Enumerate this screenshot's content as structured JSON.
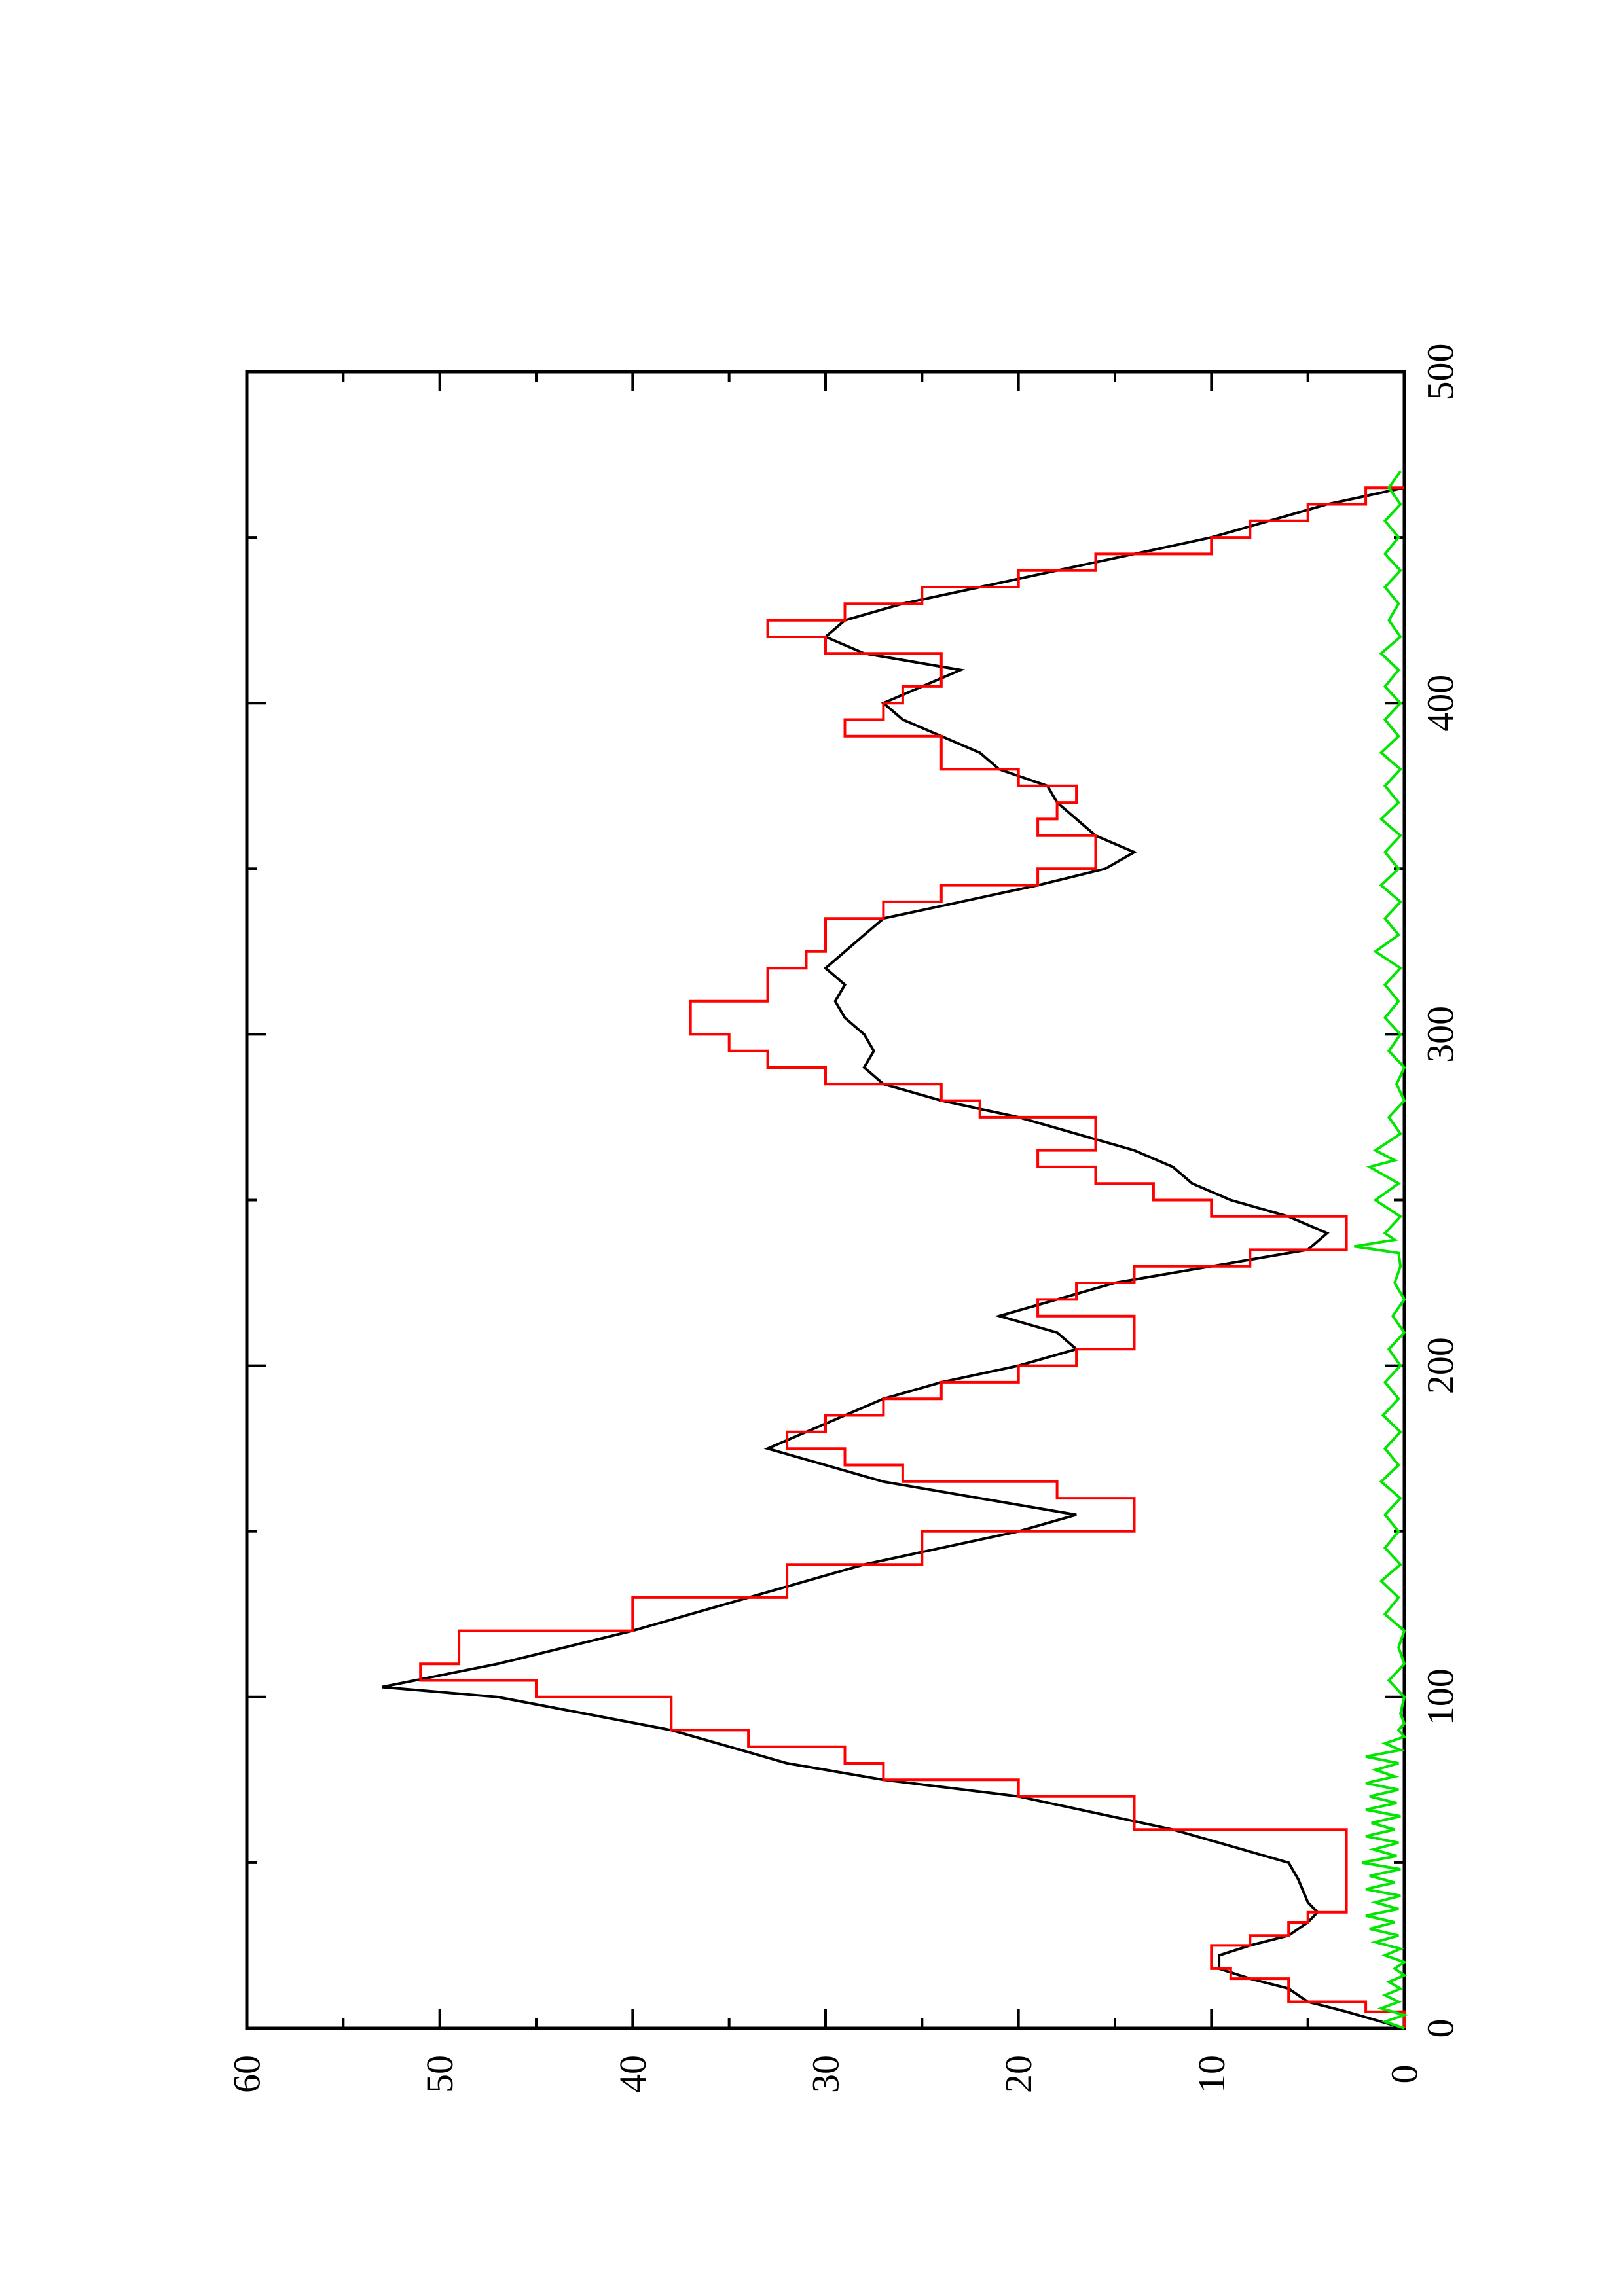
{
  "chart_data": {
    "type": "line",
    "title": "",
    "xlabel": "",
    "ylabel": "",
    "orientation": "rotated-90-ccw",
    "xlim": [
      0,
      500
    ],
    "ylim": [
      0,
      60
    ],
    "grid": false,
    "legend": "none",
    "x_ticks": [
      0,
      100,
      200,
      300,
      400,
      500
    ],
    "y_ticks": [
      0,
      10,
      20,
      30,
      40,
      50,
      60
    ],
    "x_tick_labels": [
      "0",
      "100",
      "200",
      "300",
      "400",
      "500"
    ],
    "y_tick_labels": [
      "0",
      "10",
      "20",
      "30",
      "40",
      "50",
      "60"
    ],
    "series": [
      {
        "color": "#000000",
        "style": "line",
        "points": [
          [
            0,
            0
          ],
          [
            5,
            3
          ],
          [
            8,
            5
          ],
          [
            12,
            6
          ],
          [
            15,
            8
          ],
          [
            18,
            9.6
          ],
          [
            22,
            9.6
          ],
          [
            25,
            8
          ],
          [
            28,
            6
          ],
          [
            32,
            5
          ],
          [
            35,
            4.5
          ],
          [
            38,
            5
          ],
          [
            45,
            5.5
          ],
          [
            50,
            6
          ],
          [
            60,
            12
          ],
          [
            70,
            20
          ],
          [
            75,
            27
          ],
          [
            80,
            32
          ],
          [
            85,
            35
          ],
          [
            90,
            38
          ],
          [
            100,
            47
          ],
          [
            103,
            53
          ],
          [
            110,
            47
          ],
          [
            120,
            40
          ],
          [
            130,
            34
          ],
          [
            140,
            28
          ],
          [
            150,
            20
          ],
          [
            155,
            17
          ],
          [
            160,
            22
          ],
          [
            165,
            27
          ],
          [
            170,
            30
          ],
          [
            175,
            33
          ],
          [
            180,
            31
          ],
          [
            185,
            29
          ],
          [
            190,
            27
          ],
          [
            195,
            24
          ],
          [
            200,
            20
          ],
          [
            205,
            17
          ],
          [
            210,
            18
          ],
          [
            215,
            21
          ],
          [
            220,
            18
          ],
          [
            225,
            15
          ],
          [
            230,
            10
          ],
          [
            235,
            5
          ],
          [
            240,
            4
          ],
          [
            245,
            6
          ],
          [
            250,
            9
          ],
          [
            255,
            11
          ],
          [
            260,
            12
          ],
          [
            265,
            14
          ],
          [
            270,
            17
          ],
          [
            275,
            20
          ],
          [
            280,
            24
          ],
          [
            285,
            27
          ],
          [
            290,
            28
          ],
          [
            295,
            27.5
          ],
          [
            300,
            28
          ],
          [
            305,
            29
          ],
          [
            310,
            29.5
          ],
          [
            315,
            29
          ],
          [
            320,
            30
          ],
          [
            325,
            29
          ],
          [
            330,
            28
          ],
          [
            335,
            27
          ],
          [
            340,
            23
          ],
          [
            345,
            19
          ],
          [
            350,
            15.5
          ],
          [
            355,
            14
          ],
          [
            360,
            16
          ],
          [
            365,
            17
          ],
          [
            370,
            18
          ],
          [
            375,
            18.5
          ],
          [
            380,
            21
          ],
          [
            385,
            22
          ],
          [
            390,
            24
          ],
          [
            395,
            26
          ],
          [
            400,
            27
          ],
          [
            405,
            25
          ],
          [
            410,
            23
          ],
          [
            415,
            28
          ],
          [
            420,
            30
          ],
          [
            425,
            29
          ],
          [
            430,
            26
          ],
          [
            435,
            22
          ],
          [
            440,
            18
          ],
          [
            445,
            14
          ],
          [
            450,
            10
          ],
          [
            455,
            7
          ],
          [
            460,
            4
          ],
          [
            465,
            0
          ]
        ]
      },
      {
        "color": "#ff0000",
        "style": "step",
        "points": [
          [
            0,
            0
          ],
          [
            5,
            2
          ],
          [
            8,
            6
          ],
          [
            12,
            6
          ],
          [
            15,
            9
          ],
          [
            18,
            10
          ],
          [
            22,
            10
          ],
          [
            25,
            8
          ],
          [
            28,
            6
          ],
          [
            32,
            5
          ],
          [
            35,
            3
          ],
          [
            45,
            3
          ],
          [
            50,
            3
          ],
          [
            60,
            14
          ],
          [
            70,
            20
          ],
          [
            75,
            27
          ],
          [
            80,
            29
          ],
          [
            85,
            34
          ],
          [
            90,
            38
          ],
          [
            100,
            45
          ],
          [
            105,
            51
          ],
          [
            110,
            49
          ],
          [
            120,
            40
          ],
          [
            130,
            32
          ],
          [
            140,
            25
          ],
          [
            150,
            14
          ],
          [
            155,
            14
          ],
          [
            160,
            18
          ],
          [
            165,
            26
          ],
          [
            170,
            29
          ],
          [
            175,
            32
          ],
          [
            180,
            30
          ],
          [
            185,
            27
          ],
          [
            190,
            24
          ],
          [
            195,
            20
          ],
          [
            200,
            17
          ],
          [
            205,
            14
          ],
          [
            210,
            14
          ],
          [
            215,
            19
          ],
          [
            220,
            17
          ],
          [
            225,
            14
          ],
          [
            230,
            8
          ],
          [
            235,
            3
          ],
          [
            240,
            3
          ],
          [
            245,
            10
          ],
          [
            250,
            13
          ],
          [
            255,
            16
          ],
          [
            260,
            19
          ],
          [
            265,
            16
          ],
          [
            270,
            16
          ],
          [
            275,
            22
          ],
          [
            280,
            24
          ],
          [
            285,
            30
          ],
          [
            290,
            33
          ],
          [
            295,
            35
          ],
          [
            300,
            37
          ],
          [
            305,
            37
          ],
          [
            310,
            33
          ],
          [
            315,
            33
          ],
          [
            320,
            31
          ],
          [
            325,
            30
          ],
          [
            330,
            30
          ],
          [
            335,
            27
          ],
          [
            340,
            24
          ],
          [
            345,
            19
          ],
          [
            350,
            16
          ],
          [
            355,
            16
          ],
          [
            360,
            19
          ],
          [
            365,
            18
          ],
          [
            370,
            17
          ],
          [
            375,
            20
          ],
          [
            380,
            24
          ],
          [
            385,
            24
          ],
          [
            390,
            29
          ],
          [
            395,
            27
          ],
          [
            400,
            26
          ],
          [
            405,
            24
          ],
          [
            410,
            24
          ],
          [
            415,
            30
          ],
          [
            420,
            33
          ],
          [
            425,
            29
          ],
          [
            430,
            25
          ],
          [
            435,
            20
          ],
          [
            440,
            16
          ],
          [
            445,
            10
          ],
          [
            450,
            8
          ],
          [
            455,
            5
          ],
          [
            460,
            2
          ],
          [
            465,
            0
          ]
        ]
      },
      {
        "color": "#00e600",
        "style": "line",
        "points": [
          [
            0,
            0
          ],
          [
            2,
            1
          ],
          [
            4,
            0
          ],
          [
            6,
            1.2
          ],
          [
            8,
            0.3
          ],
          [
            10,
            1
          ],
          [
            12,
            0.2
          ],
          [
            14,
            0.8
          ],
          [
            16,
            0
          ],
          [
            18,
            0.5
          ],
          [
            20,
            0
          ],
          [
            22,
            1
          ],
          [
            24,
            0.2
          ],
          [
            26,
            1.5
          ],
          [
            28,
            0.3
          ],
          [
            30,
            1.8
          ],
          [
            32,
            0.5
          ],
          [
            34,
            2
          ],
          [
            36,
            0.3
          ],
          [
            38,
            1.5
          ],
          [
            40,
            0.2
          ],
          [
            42,
            2
          ],
          [
            44,
            0.5
          ],
          [
            46,
            1.8
          ],
          [
            48,
            0.2
          ],
          [
            50,
            2.2
          ],
          [
            52,
            0.4
          ],
          [
            54,
            1.6
          ],
          [
            56,
            0.3
          ],
          [
            58,
            2
          ],
          [
            60,
            0.5
          ],
          [
            62,
            1.7
          ],
          [
            64,
            0.2
          ],
          [
            66,
            2
          ],
          [
            68,
            0.4
          ],
          [
            70,
            1.8
          ],
          [
            72,
            0.3
          ],
          [
            74,
            2
          ],
          [
            76,
            0.5
          ],
          [
            78,
            1.5
          ],
          [
            80,
            0.3
          ],
          [
            82,
            2
          ],
          [
            84,
            0.2
          ],
          [
            86,
            1
          ],
          [
            88,
            0
          ],
          [
            90,
            0.3
          ],
          [
            92,
            0
          ],
          [
            95,
            0.2
          ],
          [
            100,
            0
          ],
          [
            105,
            0.8
          ],
          [
            110,
            0
          ],
          [
            115,
            0.3
          ],
          [
            120,
            0
          ],
          [
            125,
            1
          ],
          [
            130,
            0.3
          ],
          [
            135,
            1.2
          ],
          [
            140,
            0.2
          ],
          [
            145,
            1
          ],
          [
            150,
            0.3
          ],
          [
            155,
            1
          ],
          [
            160,
            0.2
          ],
          [
            165,
            1.2
          ],
          [
            170,
            0.3
          ],
          [
            175,
            1
          ],
          [
            180,
            0.2
          ],
          [
            185,
            1.1
          ],
          [
            190,
            0.3
          ],
          [
            195,
            1
          ],
          [
            200,
            0.2
          ],
          [
            205,
            0.8
          ],
          [
            210,
            0
          ],
          [
            215,
            0.6
          ],
          [
            220,
            0
          ],
          [
            225,
            0.5
          ],
          [
            230,
            0.2
          ],
          [
            234,
            0.3
          ],
          [
            236,
            2.6
          ],
          [
            238,
            0.5
          ],
          [
            240,
            1
          ],
          [
            245,
            0.2
          ],
          [
            250,
            1.5
          ],
          [
            255,
            0.3
          ],
          [
            260,
            1.8
          ],
          [
            262,
            0.5
          ],
          [
            265,
            1.5
          ],
          [
            270,
            0.2
          ],
          [
            275,
            0.8
          ],
          [
            280,
            0
          ],
          [
            285,
            0.4
          ],
          [
            290,
            0
          ],
          [
            295,
            0.8
          ],
          [
            300,
            0.2
          ],
          [
            305,
            1
          ],
          [
            310,
            0.3
          ],
          [
            315,
            1
          ],
          [
            320,
            0.2
          ],
          [
            325,
            1.5
          ],
          [
            330,
            0.3
          ],
          [
            335,
            1
          ],
          [
            340,
            0.2
          ],
          [
            345,
            1.2
          ],
          [
            350,
            0.3
          ],
          [
            355,
            1
          ],
          [
            360,
            0.2
          ],
          [
            365,
            1.2
          ],
          [
            370,
            0.3
          ],
          [
            375,
            1
          ],
          [
            380,
            0.2
          ],
          [
            385,
            1.2
          ],
          [
            390,
            0.3
          ],
          [
            395,
            1
          ],
          [
            400,
            0.2
          ],
          [
            405,
            1
          ],
          [
            410,
            0.3
          ],
          [
            415,
            1.2
          ],
          [
            420,
            0.2
          ],
          [
            425,
            0.8
          ],
          [
            430,
            0.3
          ],
          [
            435,
            1
          ],
          [
            440,
            0.2
          ],
          [
            445,
            1
          ],
          [
            450,
            0.3
          ],
          [
            455,
            1
          ],
          [
            460,
            0.2
          ],
          [
            465,
            0.8
          ],
          [
            470,
            0.2
          ]
        ]
      }
    ]
  }
}
